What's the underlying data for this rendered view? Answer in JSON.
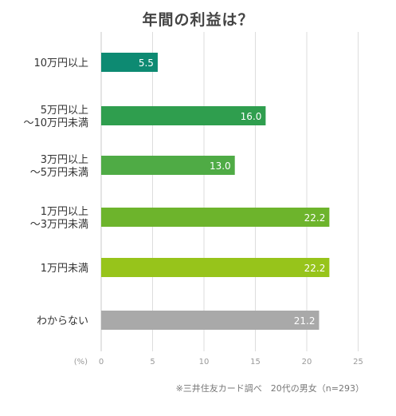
{
  "chart_data": {
    "type": "bar",
    "orientation": "horizontal",
    "title": "年間の利益は？",
    "categories": [
      [
        "10万円以上"
      ],
      [
        "5万円以上",
        "～10万円未満"
      ],
      [
        "3万円以上",
        "～5万円未満"
      ],
      [
        "1万円以上",
        "～3万円未満"
      ],
      [
        "1万円未満"
      ],
      [
        "わからない"
      ]
    ],
    "values": [
      5.5,
      16.0,
      13.0,
      22.2,
      22.2,
      21.2
    ],
    "value_labels": [
      "5.5",
      "16.0",
      "13.0",
      "22.2",
      "22.2",
      "21.2"
    ],
    "bar_colors": [
      "#0d8a72",
      "#2f9e4e",
      "#4fab45",
      "#6db42c",
      "#97c41b",
      "#a9a9a9"
    ],
    "x_unit_label": "(%)",
    "xlim": [
      0,
      25
    ],
    "xticks": [
      0,
      5,
      10,
      15,
      20,
      25
    ],
    "grid": true,
    "note": "※三井住友カード調べ　20代の男女（n=293）"
  }
}
